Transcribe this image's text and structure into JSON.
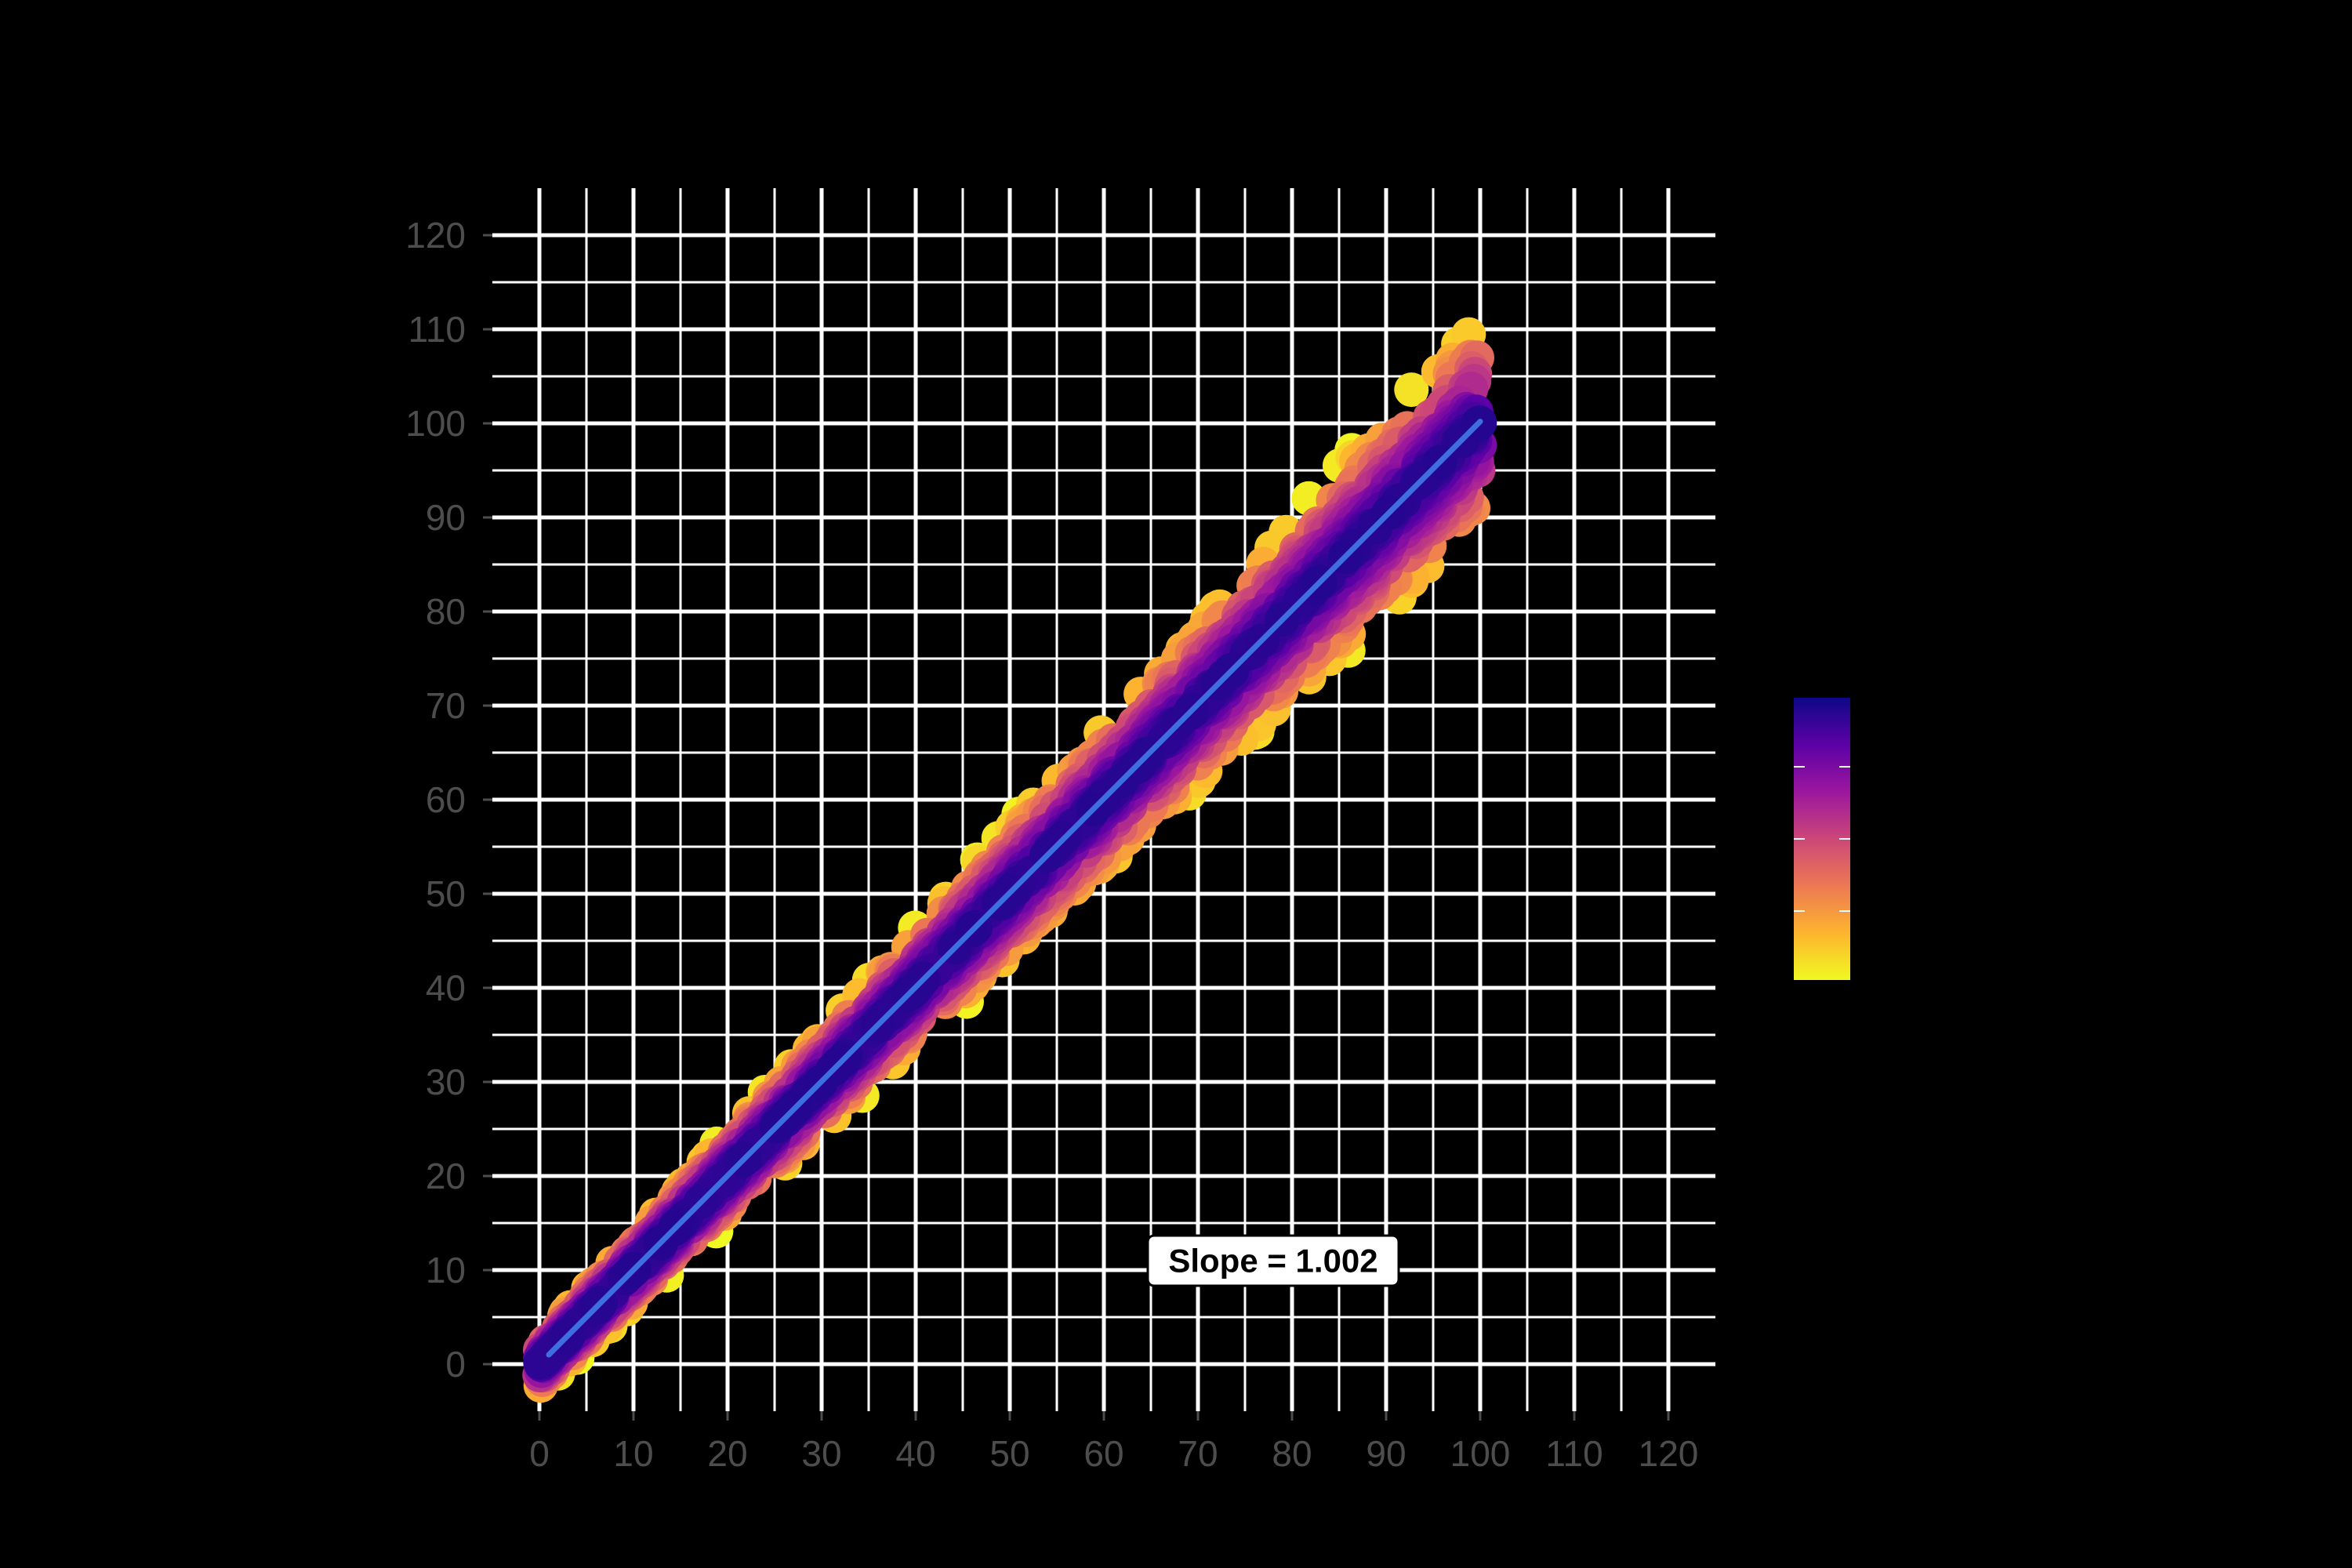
{
  "colors": {
    "background": "#000000",
    "grid": "#ffffff",
    "tick_text": "#4d4d4d",
    "fit_line": "#3d6fe0",
    "palette": [
      "#f0f921",
      "#fdb42f",
      "#ed7953",
      "#cc4778",
      "#9c179e",
      "#5c01a6",
      "#0d0887"
    ]
  },
  "chart_data": {
    "type": "scatter",
    "title": "",
    "xlabel": "",
    "ylabel": "",
    "xlim": [
      -5,
      125
    ],
    "ylim": [
      -5,
      125
    ],
    "x_ticks": [
      0,
      10,
      20,
      30,
      40,
      50,
      60,
      70,
      80,
      90,
      100,
      110,
      120
    ],
    "y_ticks": [
      0,
      10,
      20,
      30,
      40,
      50,
      60,
      70,
      80,
      90,
      100,
      110,
      120
    ],
    "x_tick_labels": [
      "0",
      "10",
      "20",
      "30",
      "40",
      "50",
      "60",
      "70",
      "80",
      "90",
      "100",
      "110",
      "120"
    ],
    "y_tick_labels": [
      "0",
      "10",
      "20",
      "30",
      "40",
      "50",
      "60",
      "70",
      "80",
      "90",
      "100",
      "110",
      "120"
    ],
    "grid": true,
    "points": {
      "description_x_range": [
        0,
        100
      ],
      "spread_at_x0": 3,
      "spread_at_x100": 12,
      "color_encoding": "density (yellow = low, dark purple = high)"
    },
    "fit_line": {
      "x": [
        1,
        100
      ],
      "y": [
        1,
        100.2
      ],
      "slope": 1.002
    },
    "annotation": {
      "text": "Slope = 1.002",
      "x": 78,
      "y": 11
    },
    "colorbar": {
      "placement": "right",
      "labels": []
    }
  }
}
